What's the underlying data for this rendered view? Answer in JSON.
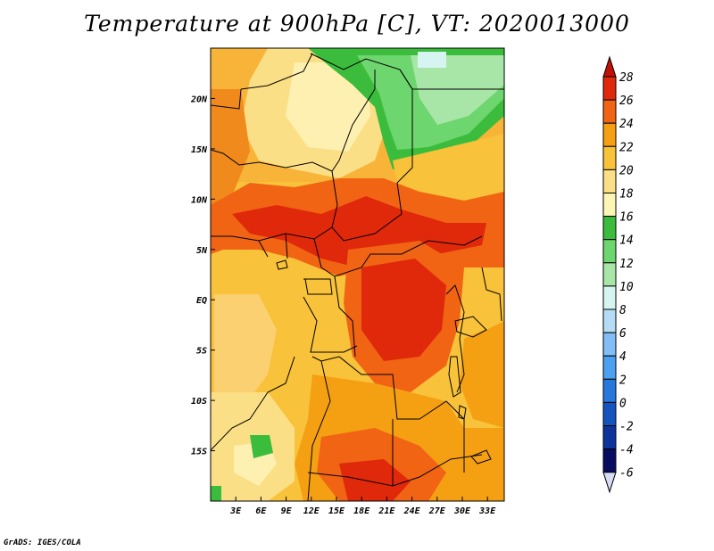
{
  "title": "Temperature at 900hPa [C], VT: 2020013000",
  "credit": "GrADS: IGES/COLA",
  "map": {
    "lon_range": [
      0,
      35
    ],
    "lat_range": [
      -20,
      25
    ],
    "x_tick_labels": [
      "3E",
      "6E",
      "9E",
      "12E",
      "15E",
      "18E",
      "21E",
      "24E",
      "27E",
      "30E",
      "33E"
    ],
    "x_tick_values": [
      3,
      6,
      9,
      12,
      15,
      18,
      21,
      24,
      27,
      30,
      33
    ],
    "y_tick_labels": [
      "20N",
      "15N",
      "10N",
      "5N",
      "EQ",
      "5S",
      "10S",
      "15S"
    ],
    "y_tick_values": [
      20,
      15,
      10,
      5,
      0,
      -5,
      -10,
      -15
    ]
  },
  "colorbar": {
    "levels": [
      "28",
      "26",
      "24",
      "22",
      "20",
      "18",
      "16",
      "14",
      "12",
      "10",
      "8",
      "6",
      "4",
      "2",
      "0",
      "-2",
      "-4",
      "-6"
    ],
    "colors": [
      "#a0000a",
      "#e0280b",
      "#f06414",
      "#f5a013",
      "#f8c23a",
      "#fbdf86",
      "#fdf5b5",
      "#3cbc3c",
      "#6ed66e",
      "#a8e6a8",
      "#d6f5f0",
      "#b4dcf5",
      "#82bef5",
      "#4ca0f0",
      "#2878dc",
      "#1454be",
      "#0c349a",
      "#060c60"
    ],
    "colors_top": "#c01008",
    "colors_bottom": "#d8dcf4"
  }
}
